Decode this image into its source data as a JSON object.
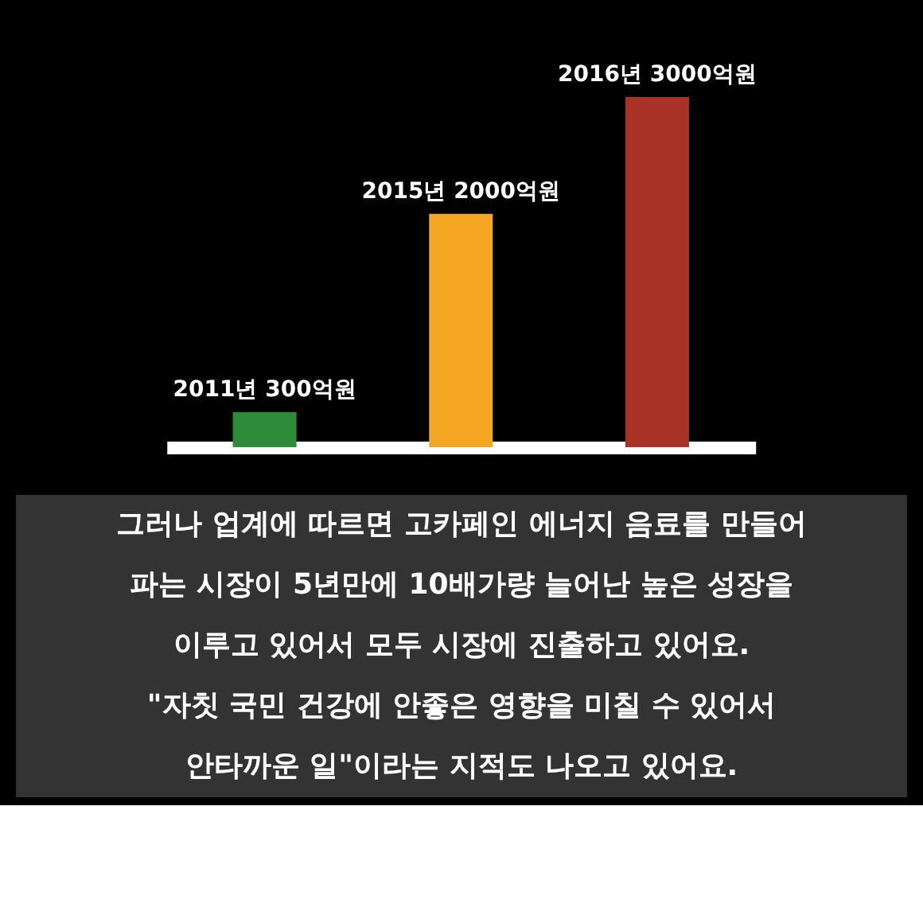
{
  "chart_data": {
    "type": "bar",
    "categories": [
      null,
      null,
      null
    ],
    "values": [
      300,
      2000,
      3000
    ],
    "colors": [
      "#2e8b3a",
      "#f5a623",
      "#a93226"
    ],
    "value_labels": [
      "2011년 300억원",
      "2015년 2000억원",
      "2016년 3000억원"
    ],
    "tick_labels": false,
    "annotations": [
      "그러나 업계에 따르면 고카페인 에너지 음료를 만들어",
      "파는 시장이 5년만에 10배가량 늘어난 높은 성장을",
      "이루고 있어서 모두 시장에 진출하고 있어요.",
      "\"자칫 국민 건강에 안좋은 영향을 미칠 수 있어서",
      "안타까운 일\"이라는 지적도 나오고 있어요."
    ]
  }
}
